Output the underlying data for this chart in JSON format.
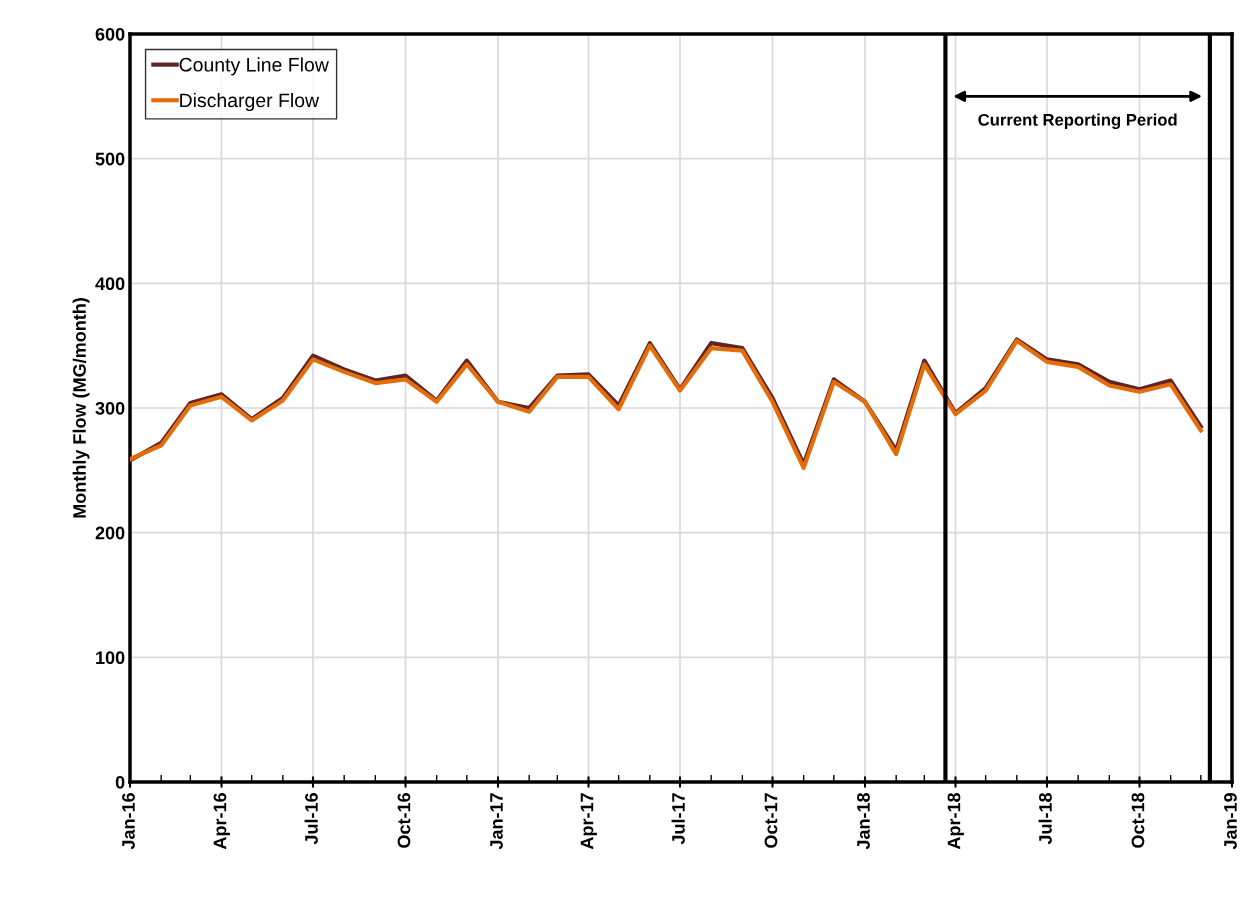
{
  "chart_data": {
    "type": "line",
    "ylabel": "Monthly Flow (MG/month)",
    "x": [
      "2016-01",
      "2016-02",
      "2016-03",
      "2016-04",
      "2016-05",
      "2016-06",
      "2016-07",
      "2016-08",
      "2016-09",
      "2016-10",
      "2016-11",
      "2016-12",
      "2017-01",
      "2017-02",
      "2017-03",
      "2017-04",
      "2017-05",
      "2017-06",
      "2017-07",
      "2017-08",
      "2017-09",
      "2017-10",
      "2017-11",
      "2017-12",
      "2018-01",
      "2018-02",
      "2018-03",
      "2018-04",
      "2018-05",
      "2018-06",
      "2018-07",
      "2018-08",
      "2018-09",
      "2018-10",
      "2018-11",
      "2018-12"
    ],
    "series": [
      {
        "name": "County Line Flow",
        "color": "#5e2426",
        "values": [
          258,
          272,
          304,
          311,
          291,
          308,
          342,
          331,
          322,
          326,
          306,
          338,
          305,
          300,
          326,
          327,
          302,
          352,
          315,
          352,
          348,
          308,
          255,
          323,
          305,
          266,
          338,
          296,
          316,
          355,
          339,
          335,
          321,
          315,
          322,
          285
        ]
      },
      {
        "name": "Discharger Flow",
        "color": "#e46c0a",
        "values": [
          259,
          270,
          302,
          309,
          290,
          306,
          339,
          329,
          320,
          323,
          305,
          335,
          305,
          297,
          325,
          325,
          299,
          350,
          314,
          348,
          346,
          305,
          252,
          321,
          305,
          263,
          335,
          295,
          314,
          354,
          337,
          333,
          318,
          313,
          319,
          282
        ]
      }
    ],
    "xlim": [
      "2016-01",
      "2019-01"
    ],
    "xticks": [
      {
        "value": "2016-01",
        "label": "Jan-16"
      },
      {
        "value": "2016-04",
        "label": "Apr-16"
      },
      {
        "value": "2016-07",
        "label": "Jul-16"
      },
      {
        "value": "2016-10",
        "label": "Oct-16"
      },
      {
        "value": "2017-01",
        "label": "Jan-17"
      },
      {
        "value": "2017-04",
        "label": "Apr-17"
      },
      {
        "value": "2017-07",
        "label": "Jul-17"
      },
      {
        "value": "2017-10",
        "label": "Oct-17"
      },
      {
        "value": "2018-01",
        "label": "Jan-18"
      },
      {
        "value": "2018-04",
        "label": "Apr-18"
      },
      {
        "value": "2018-07",
        "label": "Jul-18"
      },
      {
        "value": "2018-10",
        "label": "Oct-18"
      },
      {
        "value": "2019-01",
        "label": "Jan-19"
      }
    ],
    "ylim": [
      0,
      600
    ],
    "yticks": [
      0,
      100,
      200,
      300,
      400,
      500,
      600
    ],
    "ref_lines": [
      {
        "axis": "x",
        "value": "2018-03-22",
        "color": "#000000"
      },
      {
        "axis": "x",
        "value": "2018-12-10",
        "color": "#000000"
      }
    ],
    "annotations": [
      "Current Reporting Period"
    ],
    "grid": true,
    "legend": "top left",
    "marker": "none",
    "line_style": "solid"
  }
}
